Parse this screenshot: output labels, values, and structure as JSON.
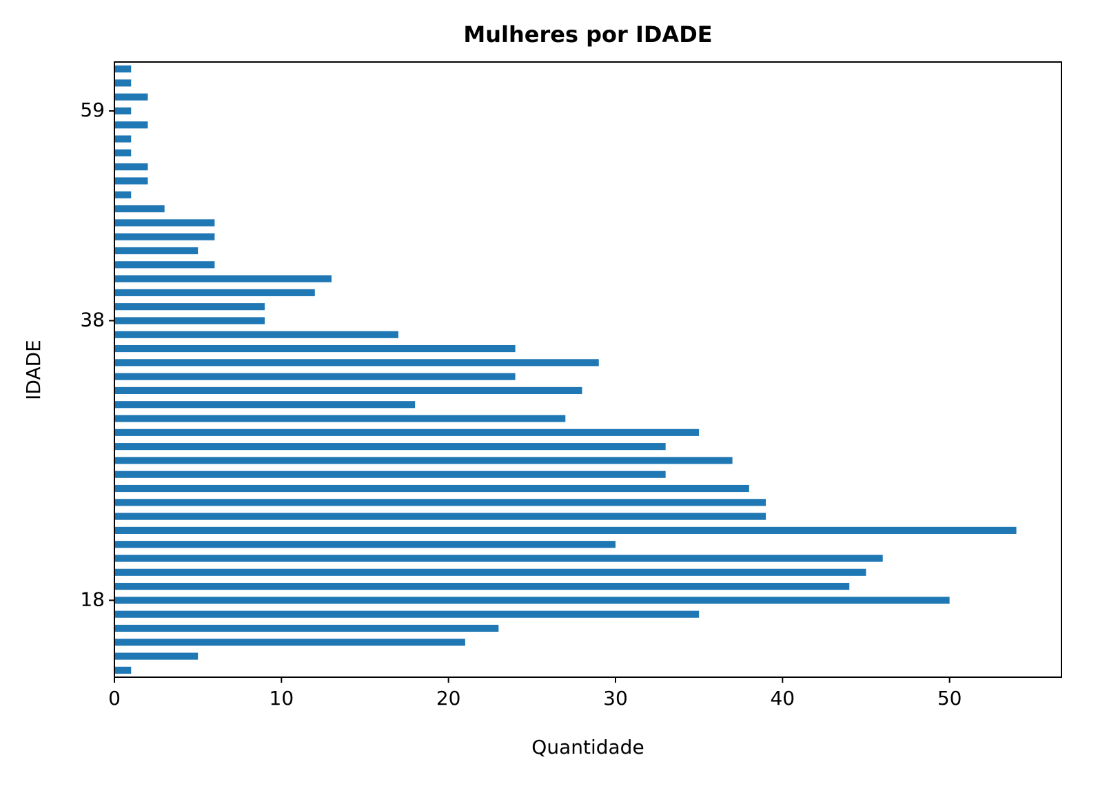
{
  "chart_data": {
    "type": "barh",
    "title": "Mulheres por IDADE",
    "xlabel": "Quantidade",
    "ylabel": "IDADE",
    "categories": [
      null,
      null,
      null,
      null,
      null,
      "18",
      null,
      null,
      null,
      null,
      null,
      null,
      null,
      null,
      null,
      null,
      null,
      null,
      null,
      null,
      null,
      null,
      null,
      null,
      null,
      "38",
      null,
      null,
      null,
      null,
      null,
      null,
      null,
      null,
      null,
      null,
      null,
      null,
      null,
      null,
      "59",
      null,
      null,
      null
    ],
    "values": [
      1,
      5,
      21,
      23,
      35,
      50,
      44,
      45,
      46,
      30,
      54,
      39,
      39,
      38,
      33,
      37,
      33,
      35,
      27,
      18,
      28,
      24,
      29,
      24,
      17,
      9,
      9,
      12,
      13,
      6,
      5,
      6,
      6,
      3,
      1,
      2,
      2,
      1,
      1,
      2,
      1,
      2,
      1,
      1
    ],
    "color": "#1f77b4",
    "xlim": [
      0,
      56.7
    ],
    "xticks": [
      0,
      10,
      20,
      30,
      40,
      50
    ],
    "grid": false
  }
}
